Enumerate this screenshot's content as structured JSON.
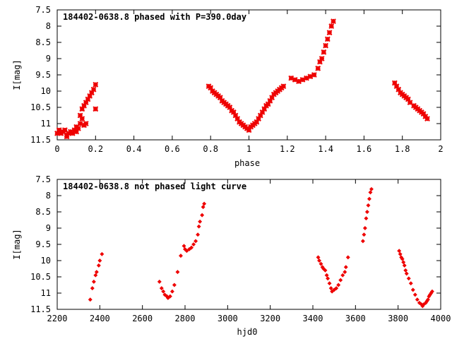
{
  "colors": {
    "points": "#ee0000",
    "axes": "#000000",
    "background": "#ffffff"
  },
  "chart_data": [
    {
      "type": "scatter",
      "title": "184402-0638.8 phased with P=390.0day",
      "xlabel": "phase",
      "ylabel": "I[mag]",
      "xlim": [
        0,
        2
      ],
      "ylim": [
        7.5,
        11.5
      ],
      "y_inverted": true,
      "xticks": [
        "0",
        "0.2",
        "0.4",
        "0.6",
        "0.8",
        "1",
        "1.2",
        "1.4",
        "1.6",
        "1.8",
        "2"
      ],
      "yticks": [
        "7.5",
        "8",
        "8.5",
        "9",
        "9.5",
        "10",
        "10.5",
        "11",
        "11.5"
      ],
      "marker": "cross",
      "grid": false,
      "x": [
        0.0,
        0.01,
        0.02,
        0.03,
        0.04,
        0.05,
        0.05,
        0.06,
        0.07,
        0.08,
        0.09,
        0.1,
        0.1,
        0.11,
        0.12,
        0.12,
        0.13,
        0.13,
        0.14,
        0.14,
        0.15,
        0.15,
        0.16,
        0.17,
        0.18,
        0.19,
        0.2,
        0.2,
        0.79,
        0.8,
        0.81,
        0.82,
        0.83,
        0.84,
        0.85,
        0.86,
        0.87,
        0.88,
        0.89,
        0.9,
        0.91,
        0.92,
        0.93,
        0.94,
        0.95,
        0.96,
        0.97,
        0.98,
        0.99,
        1.0,
        1.01,
        1.02,
        1.03,
        1.04,
        1.05,
        1.06,
        1.07,
        1.08,
        1.09,
        1.1,
        1.11,
        1.12,
        1.13,
        1.14,
        1.15,
        1.16,
        1.17,
        1.18,
        1.22,
        1.24,
        1.26,
        1.28,
        1.3,
        1.32,
        1.34,
        1.36,
        1.37,
        1.38,
        1.39,
        1.4,
        1.41,
        1.42,
        1.43,
        1.44,
        1.76,
        1.77,
        1.78,
        1.79,
        1.8,
        1.81,
        1.82,
        1.83,
        1.84,
        1.86,
        1.87,
        1.88,
        1.89,
        1.9,
        1.91,
        1.92,
        1.93
      ],
      "y": [
        11.3,
        11.2,
        11.3,
        11.25,
        11.2,
        11.35,
        11.4,
        11.3,
        11.25,
        11.3,
        11.2,
        11.1,
        11.25,
        11.15,
        11.0,
        10.75,
        10.85,
        10.55,
        11.05,
        10.45,
        11.0,
        10.35,
        10.25,
        10.15,
        10.05,
        9.95,
        10.55,
        9.8,
        9.85,
        9.9,
        10.0,
        10.05,
        10.1,
        10.15,
        10.2,
        10.3,
        10.35,
        10.4,
        10.45,
        10.5,
        10.6,
        10.65,
        10.75,
        10.85,
        10.95,
        11.0,
        11.05,
        11.1,
        11.15,
        11.2,
        11.1,
        11.05,
        11.0,
        10.95,
        10.85,
        10.75,
        10.65,
        10.55,
        10.45,
        10.4,
        10.3,
        10.2,
        10.1,
        10.05,
        10.0,
        9.95,
        9.9,
        9.85,
        9.6,
        9.65,
        9.7,
        9.65,
        9.6,
        9.55,
        9.5,
        9.3,
        9.1,
        9.0,
        8.8,
        8.6,
        8.4,
        8.2,
        8.0,
        7.85,
        9.75,
        9.85,
        9.95,
        10.05,
        10.1,
        10.15,
        10.2,
        10.25,
        10.35,
        10.45,
        10.5,
        10.55,
        10.6,
        10.65,
        10.7,
        10.78,
        10.85
      ]
    },
    {
      "type": "scatter",
      "title": "184402-0638.8 not phased light curve",
      "xlabel": "hjd0",
      "ylabel": "I[mag]",
      "xlim": [
        2200,
        4000
      ],
      "ylim": [
        7.5,
        11.5
      ],
      "y_inverted": true,
      "xticks": [
        "2200",
        "2400",
        "2600",
        "2800",
        "3000",
        "3200",
        "3400",
        "3600",
        "3800",
        "4000"
      ],
      "yticks": [
        "7.5",
        "8",
        "8.5",
        "9",
        "9.5",
        "10",
        "10.5",
        "11",
        "11.5"
      ],
      "marker": "diamond",
      "grid": false,
      "x": [
        2355,
        2365,
        2372,
        2380,
        2385,
        2395,
        2400,
        2410,
        2680,
        2690,
        2698,
        2705,
        2715,
        2720,
        2730,
        2740,
        2750,
        2765,
        2780,
        2795,
        2800,
        2808,
        2820,
        2830,
        2840,
        2850,
        2860,
        2865,
        2870,
        2880,
        2885,
        2890,
        3425,
        3430,
        3438,
        3445,
        3450,
        3458,
        3465,
        3470,
        3478,
        3485,
        3490,
        3500,
        3510,
        3520,
        3530,
        3540,
        3550,
        3555,
        3565,
        3635,
        3640,
        3645,
        3650,
        3655,
        3660,
        3665,
        3670,
        3675,
        3805,
        3810,
        3815,
        3820,
        3825,
        3830,
        3835,
        3840,
        3850,
        3860,
        3870,
        3880,
        3890,
        3900,
        3910,
        3915,
        3920,
        3930,
        3935,
        3940,
        3945,
        3950,
        3955,
        3960
      ],
      "y": [
        11.2,
        10.85,
        10.65,
        10.45,
        10.35,
        10.15,
        10.0,
        9.8,
        10.65,
        10.85,
        10.95,
        11.05,
        11.1,
        11.15,
        11.1,
        10.95,
        10.75,
        10.35,
        9.85,
        9.55,
        9.65,
        9.7,
        9.65,
        9.6,
        9.5,
        9.4,
        9.2,
        8.95,
        8.8,
        8.6,
        8.35,
        8.25,
        9.9,
        10.0,
        10.1,
        10.2,
        10.25,
        10.3,
        10.45,
        10.55,
        10.7,
        10.85,
        10.95,
        10.9,
        10.85,
        10.75,
        10.6,
        10.45,
        10.35,
        10.2,
        9.9,
        9.4,
        9.2,
        9.0,
        8.7,
        8.5,
        8.3,
        8.1,
        7.9,
        7.8,
        9.7,
        9.8,
        9.9,
        9.95,
        10.05,
        10.15,
        10.3,
        10.4,
        10.55,
        10.7,
        10.9,
        11.05,
        11.2,
        11.3,
        11.35,
        11.4,
        11.35,
        11.3,
        11.25,
        11.2,
        11.1,
        11.05,
        11.0,
        10.95
      ]
    }
  ]
}
